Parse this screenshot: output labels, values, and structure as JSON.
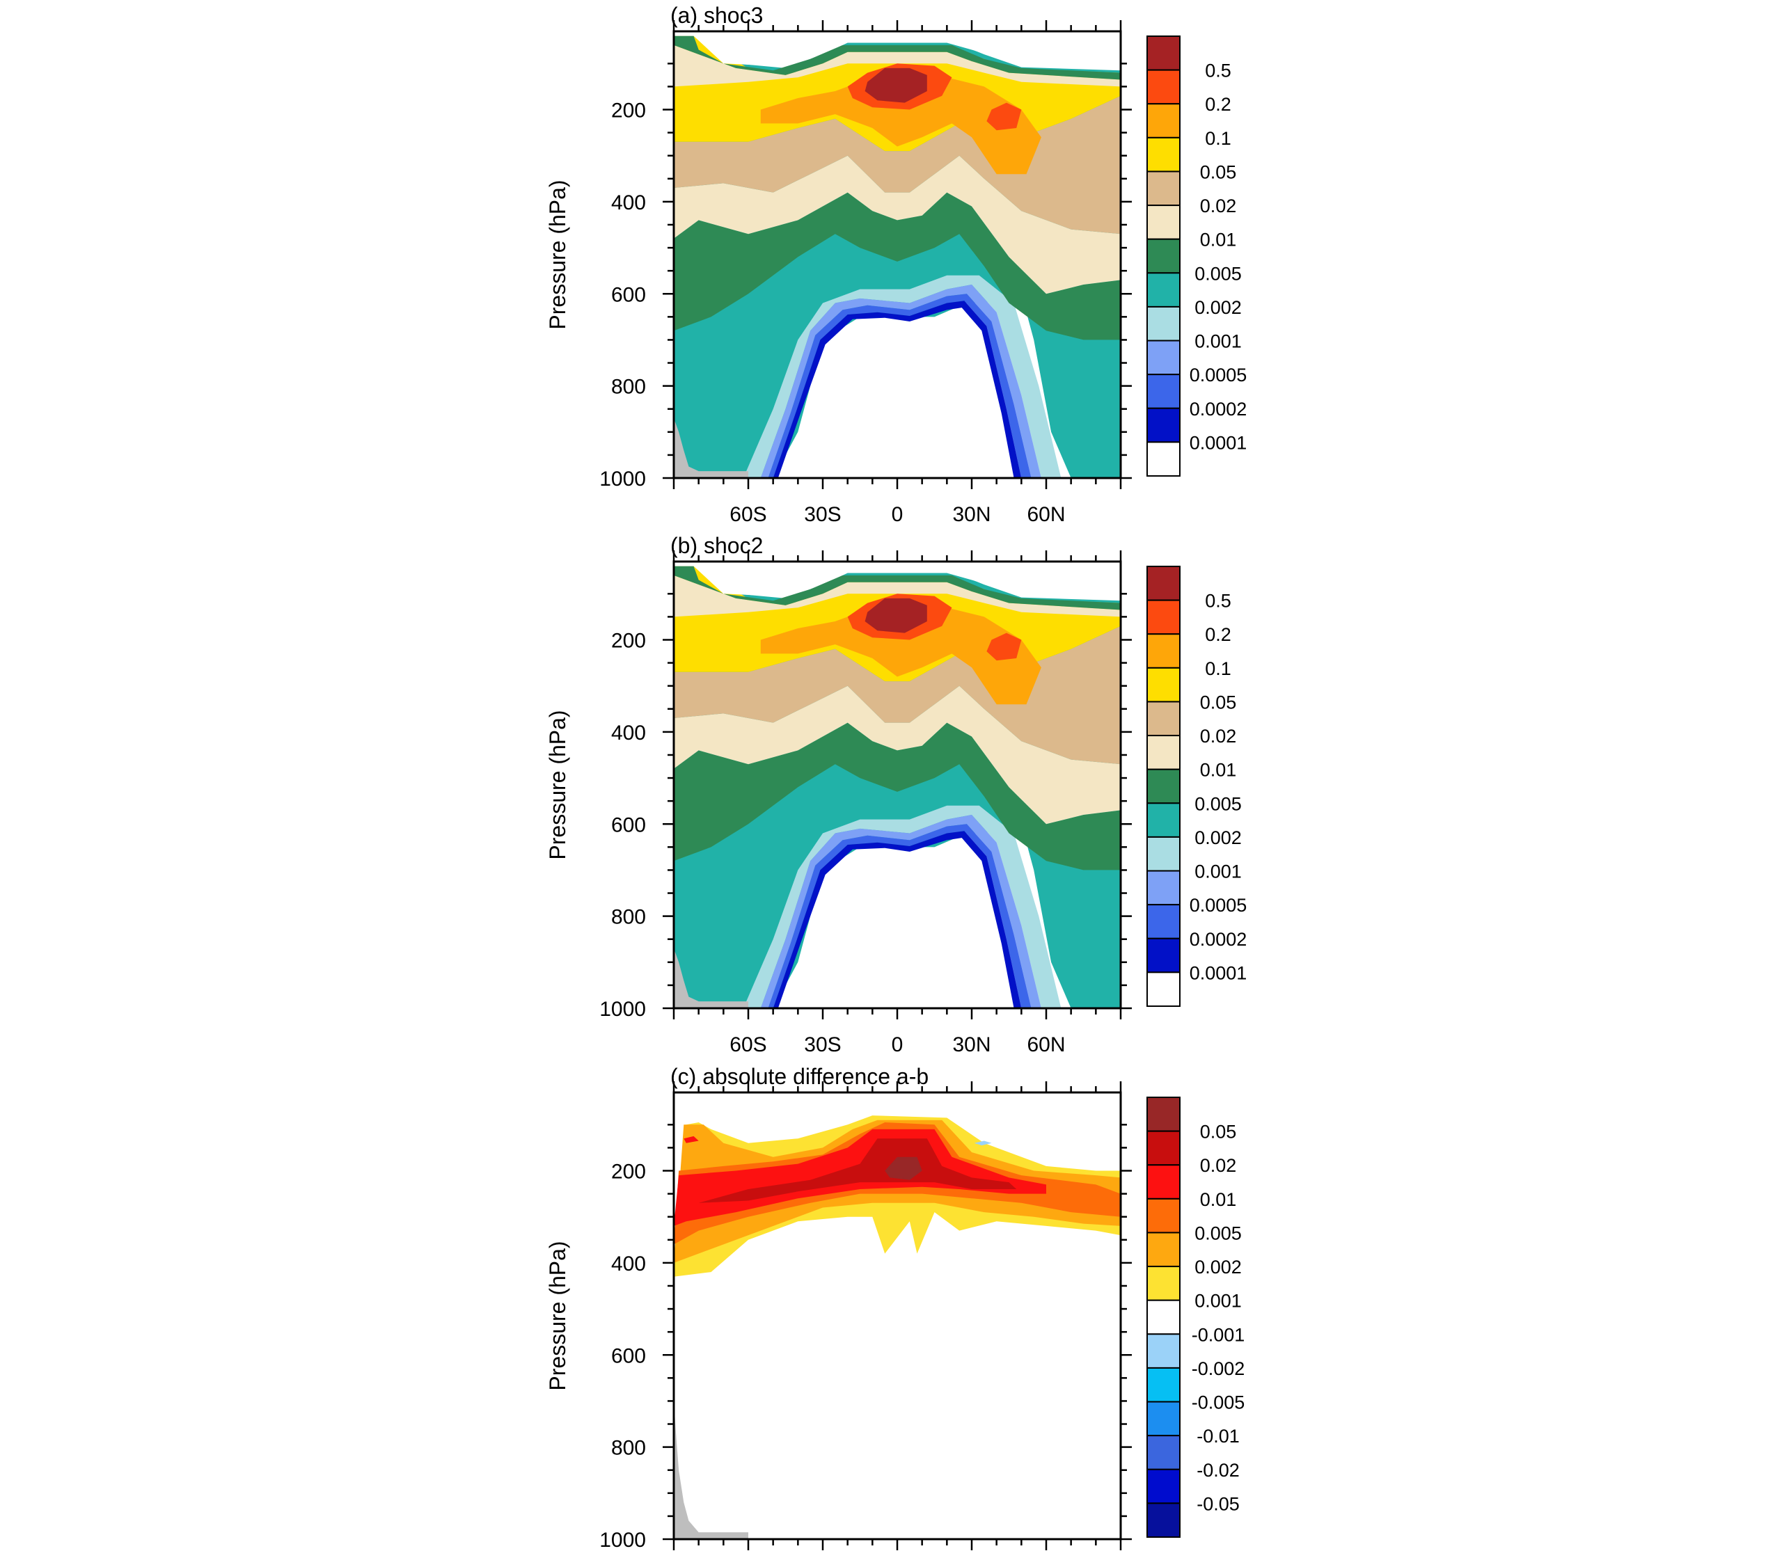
{
  "chart_data": [
    {
      "type": "heatmap",
      "panel": "a",
      "title": "(a) shoc3",
      "ylabel": "Pressure (hPa)",
      "xlabel": "",
      "ylim": [
        1000,
        30
      ],
      "xlim": [
        -90,
        90
      ],
      "y_ticks": [
        200,
        400,
        600,
        800,
        1000
      ],
      "x_ticks": [
        "60S",
        "30S",
        "0",
        "30N",
        "60N"
      ],
      "x_tick_values": [
        -60,
        -30,
        0,
        30,
        60
      ],
      "colorbar_labels": [
        "0.5",
        "0.2",
        "0.1",
        "0.05",
        "0.02",
        "0.01",
        "0.005",
        "0.002",
        "0.001",
        "0.0005",
        "0.0002",
        "0.0001"
      ],
      "colorbar_colors": [
        "#a52224",
        "#fc4a10",
        "#fea609",
        "#fede00",
        "#dcb98c",
        "#f4e6c4",
        "#2e8a55",
        "#21b2a8",
        "#aadde3",
        "#7ea1f6",
        "#3c66ea",
        "#0211c7",
        "#ffffff"
      ],
      "terrain_color": "#bebebe",
      "values_note": "zonal-mean field; contours read from figure"
    },
    {
      "type": "heatmap",
      "panel": "b",
      "title": "(b) shoc2",
      "ylabel": "Pressure (hPa)",
      "xlabel": "",
      "ylim": [
        1000,
        30
      ],
      "xlim": [
        -90,
        90
      ],
      "y_ticks": [
        200,
        400,
        600,
        800,
        1000
      ],
      "x_ticks": [
        "60S",
        "30S",
        "0",
        "30N",
        "60N"
      ],
      "x_tick_values": [
        -60,
        -30,
        0,
        30,
        60
      ],
      "colorbar_labels": [
        "0.5",
        "0.2",
        "0.1",
        "0.05",
        "0.02",
        "0.01",
        "0.005",
        "0.002",
        "0.001",
        "0.0005",
        "0.0002",
        "0.0001"
      ],
      "colorbar_colors": [
        "#a52224",
        "#fc4a10",
        "#fea609",
        "#fede00",
        "#dcb98c",
        "#f4e6c4",
        "#2e8a55",
        "#21b2a8",
        "#aadde3",
        "#7ea1f6",
        "#3c66ea",
        "#0211c7",
        "#ffffff"
      ],
      "terrain_color": "#bebebe"
    },
    {
      "type": "heatmap",
      "panel": "c",
      "title": "(c) absolute difference a-b",
      "ylabel": "Pressure (hPa)",
      "xlabel": "",
      "ylim": [
        1000,
        30
      ],
      "xlim": [
        -90,
        90
      ],
      "y_ticks": [
        200,
        400,
        600,
        800,
        1000
      ],
      "x_ticks": [
        "60S",
        "30S",
        "0",
        "30N",
        "60N"
      ],
      "x_tick_values": [
        -60,
        -30,
        0,
        30,
        60
      ],
      "colorbar_labels": [
        "0.05",
        "0.02",
        "0.01",
        "0.005",
        "0.002",
        "0.001",
        "-0.001",
        "-0.002",
        "-0.005",
        "-0.01",
        "-0.02",
        "-0.05"
      ],
      "colorbar_colors": [
        "#982727",
        "#c80e0e",
        "#fd1111",
        "#fd6c09",
        "#fea810",
        "#fde232",
        "#ffffff",
        "#9bd2f8",
        "#06bff3",
        "#1c8ef0",
        "#3b66de",
        "#000cce",
        "#06109c"
      ],
      "terrain_color": "#bebebe"
    }
  ]
}
